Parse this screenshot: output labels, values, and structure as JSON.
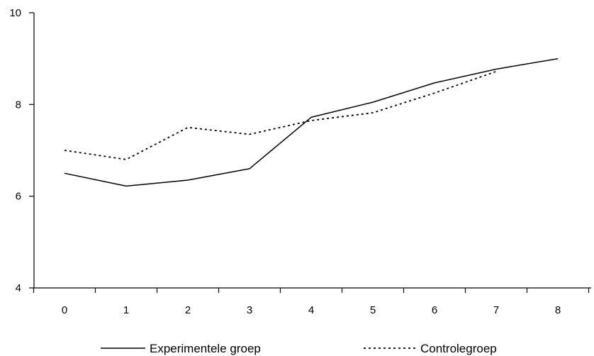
{
  "chart_data": {
    "type": "line",
    "title": "",
    "xlabel": "",
    "ylabel": "",
    "x": [
      0,
      1,
      2,
      3,
      4,
      5,
      6,
      7,
      8
    ],
    "x_ticks": [
      "0",
      "1",
      "2",
      "3",
      "4",
      "5",
      "6",
      "7",
      "8"
    ],
    "y_ticks": [
      "4",
      "6",
      "8",
      "10"
    ],
    "ylim": [
      4,
      10
    ],
    "xlim": [
      -0.5,
      8.5
    ],
    "grid": false,
    "legend_position": "bottom",
    "series": [
      {
        "name": "Experimentele groep",
        "style": "solid",
        "color": "#000000",
        "x": [
          0,
          1,
          2,
          3,
          4,
          5,
          6,
          7,
          8
        ],
        "values": [
          6.5,
          6.22,
          6.35,
          6.6,
          7.72,
          8.05,
          8.47,
          8.77,
          9.0
        ]
      },
      {
        "name": "Controlegroep",
        "style": "dotted",
        "color": "#000000",
        "x": [
          0,
          1,
          2,
          3,
          4,
          5,
          6,
          7
        ],
        "values": [
          7.0,
          6.8,
          7.5,
          7.35,
          7.65,
          7.82,
          8.25,
          8.72
        ]
      }
    ]
  }
}
